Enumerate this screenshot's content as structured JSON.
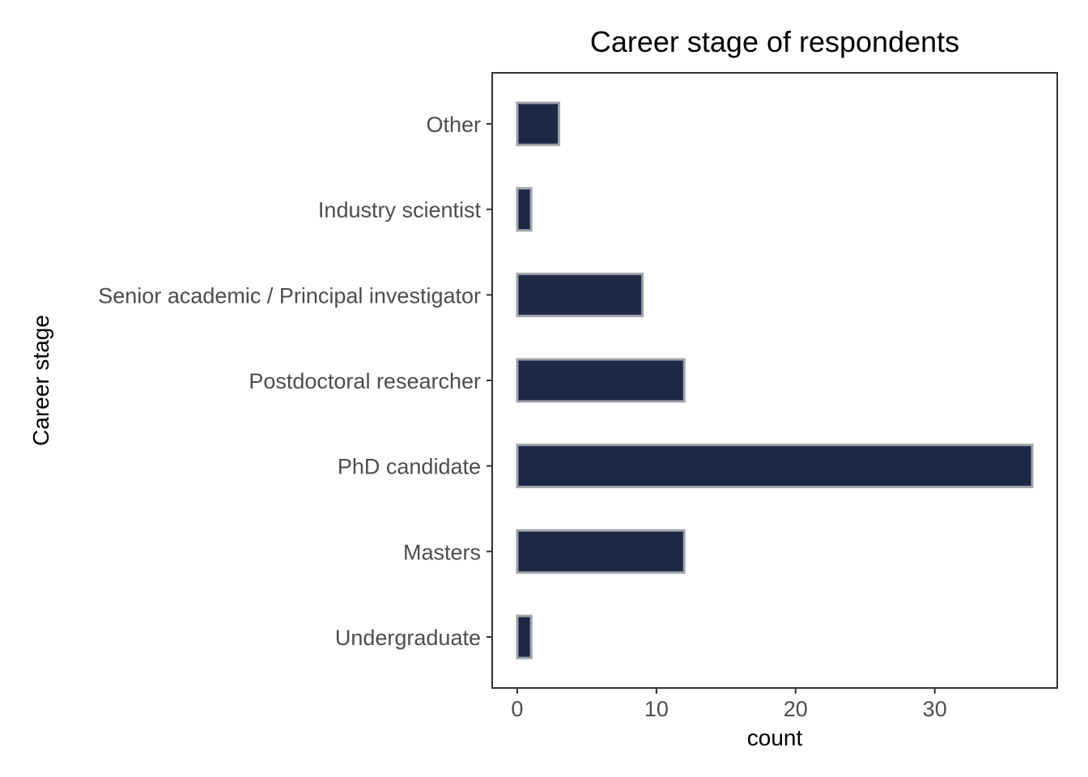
{
  "chart_data": {
    "type": "bar",
    "orientation": "horizontal",
    "title": "Career stage of respondents",
    "xlabel": "count",
    "ylabel": "Career stage",
    "categories": [
      "Other",
      "Industry scientist",
      "Senior academic / Principal investigator",
      "Postdoctoral researcher",
      "PhD candidate",
      "Masters",
      "Undergraduate"
    ],
    "values": [
      3,
      1,
      9,
      12,
      37,
      12,
      1
    ],
    "x_ticks": [
      0,
      10,
      20,
      30
    ],
    "xlim": [
      -1.8,
      38.8
    ],
    "grid": false,
    "legend": "none",
    "colors": {
      "bar_fill": "#1c2944",
      "bar_outline": "#a0a3aa",
      "panel_border": "#333333",
      "tick_label": "#4d4d4d"
    }
  }
}
